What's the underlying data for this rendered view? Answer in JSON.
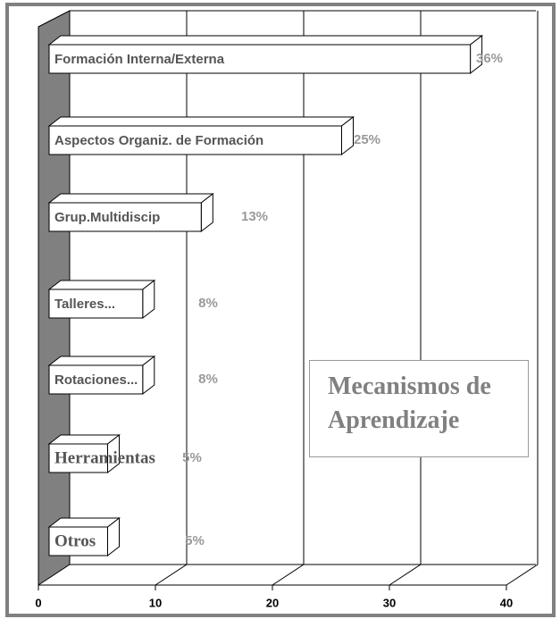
{
  "chart_data": {
    "type": "bar",
    "title": "Mecanismos de Aprendizaje",
    "categories": [
      "Formación Interna/Externa",
      "Aspectos Organiz. de Formación",
      "Grup.Multidiscip",
      "Talleres...",
      "Rotaciones...",
      "Herramientas",
      "Otros"
    ],
    "values": [
      36,
      25,
      13,
      8,
      8,
      5,
      5
    ],
    "value_labels": [
      "36%",
      "25%",
      "13%",
      "8%",
      "8%",
      "5%",
      "5%"
    ],
    "color": "#ffffff",
    "xlim": [
      0,
      40
    ],
    "xticks": [
      0,
      10,
      20,
      30,
      40
    ],
    "grid": true
  }
}
